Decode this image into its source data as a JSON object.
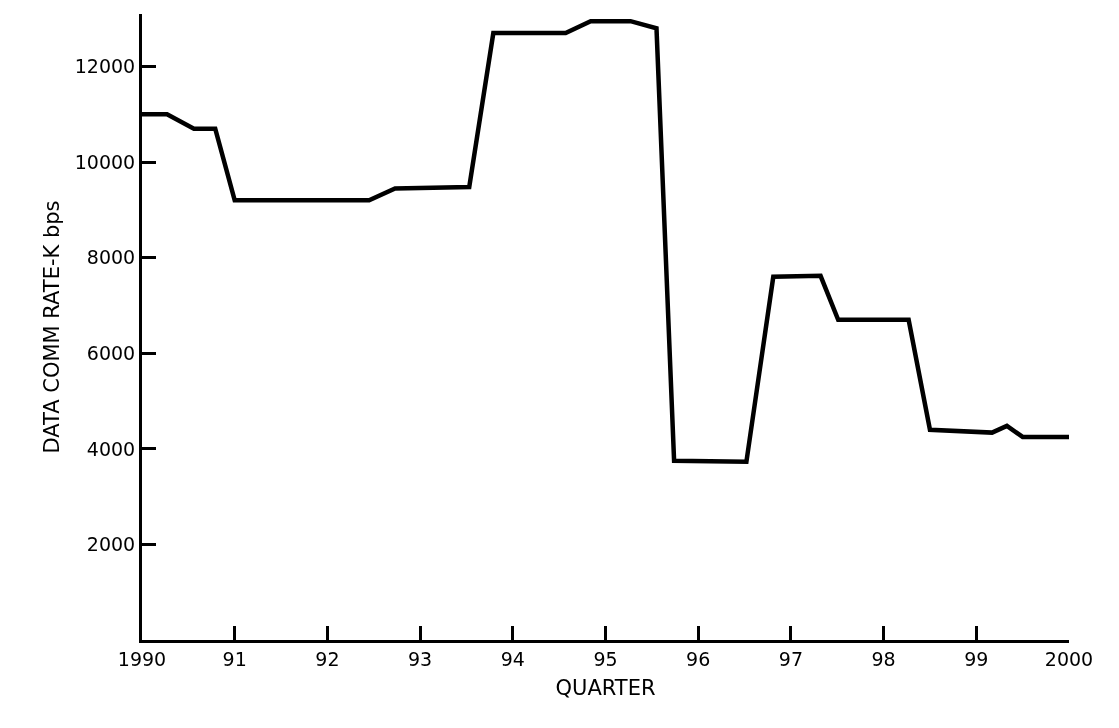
{
  "chart_data": {
    "type": "line",
    "xlabel": "QUARTER",
    "ylabel": "DATA COMM RATE-K bps",
    "x": [
      1990,
      1990.27,
      1990.56,
      1990.79,
      1991.0,
      1992.45,
      1992.73,
      1993.53,
      1993.79,
      1994.57,
      1994.84,
      1995.27,
      1995.55,
      1995.74,
      1996.52,
      1996.81,
      1997.32,
      1997.51,
      1998.27,
      1998.5,
      1999.17,
      1999.33,
      1999.5,
      2000
    ],
    "series": [
      {
        "color": "#000000",
        "values": [
          11000,
          11000,
          10700,
          10700,
          9200,
          9200,
          9450,
          9480,
          12700,
          12700,
          12950,
          12950,
          12800,
          3750,
          3730,
          7600,
          7620,
          6700,
          6700,
          4400,
          4340,
          4480,
          4250,
          4250
        ]
      }
    ],
    "xlim": [
      1990,
      2000
    ],
    "xticks": [
      1990,
      {
        "value": 1991,
        "label": "91"
      },
      {
        "value": 1992,
        "label": "92"
      },
      {
        "value": 1993,
        "label": "93"
      },
      {
        "value": 1994,
        "label": "94"
      },
      {
        "value": 1995,
        "label": "95"
      },
      {
        "value": 1996,
        "label": "96"
      },
      {
        "value": 1997,
        "label": "97"
      },
      {
        "value": 1998,
        "label": "98"
      },
      {
        "value": 1999,
        "label": "99"
      },
      2000
    ],
    "ylim": [
      0,
      13100
    ],
    "yticks": [
      2000,
      4000,
      6000,
      8000,
      10000,
      12000
    ],
    "grid": false,
    "marker": "none",
    "line_style": "solid"
  }
}
